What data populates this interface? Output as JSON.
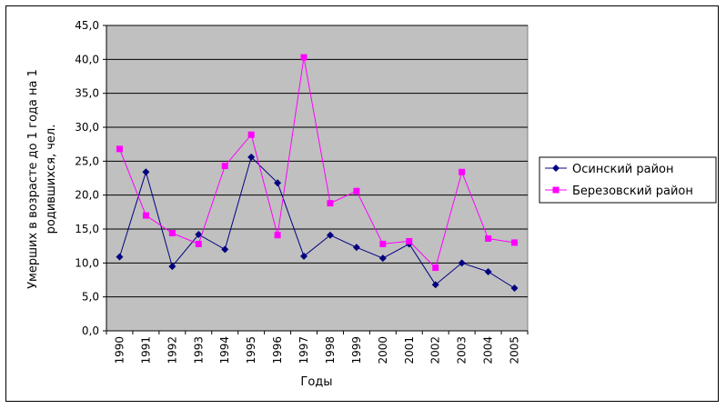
{
  "chart_data": {
    "type": "line",
    "categories": [
      "1990",
      "1991",
      "1992",
      "1993",
      "1994",
      "1995",
      "1996",
      "1997",
      "1998",
      "1999",
      "2000",
      "2001",
      "2002",
      "2003",
      "2004",
      "2005"
    ],
    "series": [
      {
        "name": "Осинский район",
        "color": "#000080",
        "marker": "diamond",
        "values": [
          10.9,
          23.4,
          9.5,
          14.2,
          12.0,
          25.6,
          21.8,
          11.0,
          14.1,
          12.3,
          10.7,
          12.8,
          6.8,
          10.0,
          8.7,
          6.3
        ]
      },
      {
        "name": "Березовский район",
        "color": "#ff00ff",
        "marker": "square",
        "values": [
          26.8,
          17.0,
          14.4,
          12.8,
          24.3,
          28.9,
          14.1,
          40.3,
          18.8,
          20.6,
          12.8,
          13.2,
          9.3,
          23.4,
          13.6,
          13.0
        ]
      }
    ],
    "xlabel": "Годы",
    "ylabel_line1": "Умерших в возрасте до 1 года на 1",
    "ylabel_line2": "родившихся, чел.",
    "ylim": [
      0,
      45
    ],
    "yticks": [
      "0,0",
      "5,0",
      "10,0",
      "15,0",
      "20,0",
      "25,0",
      "30,0",
      "35,0",
      "40,0",
      "45,0"
    ],
    "grid": true,
    "plot_background": "#c0c0c0",
    "legend_position": "right"
  }
}
